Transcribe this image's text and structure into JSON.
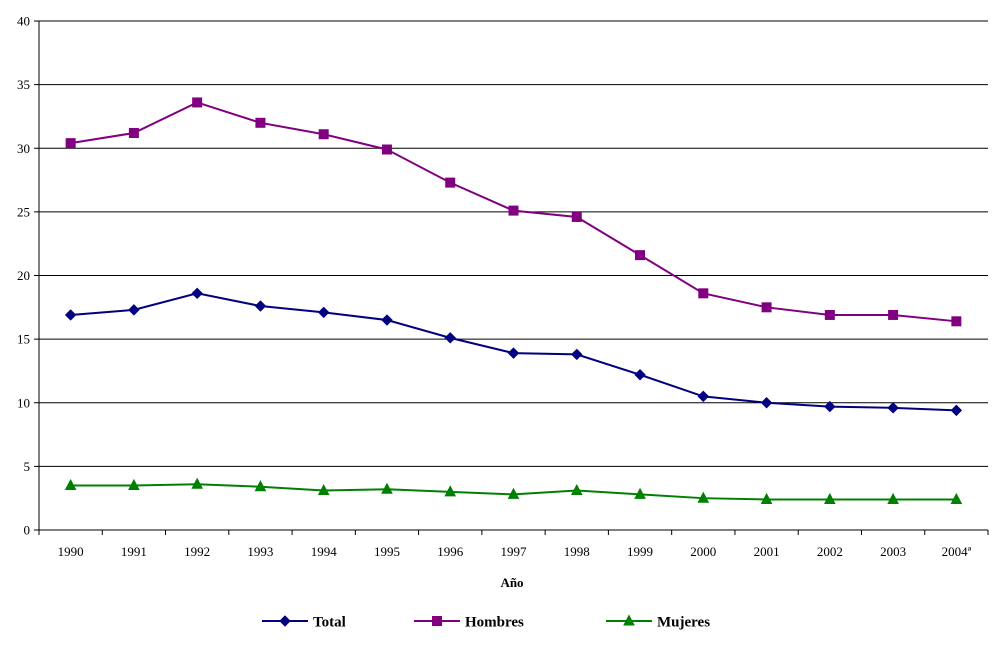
{
  "chart_data": {
    "type": "line",
    "title": "",
    "xlabel": "Año",
    "ylabel": "",
    "ylim": [
      0,
      40
    ],
    "yticks": [
      0,
      5,
      10,
      15,
      20,
      25,
      30,
      35,
      40
    ],
    "grid": "horizontal",
    "legend_position": "bottom",
    "categories": [
      "1990",
      "1991",
      "1992",
      "1993",
      "1994",
      "1995",
      "1996",
      "1997",
      "1998",
      "1999",
      "2000",
      "2001",
      "2002",
      "2003",
      "2004ª"
    ],
    "series": [
      {
        "name": "Total",
        "color": "#000080",
        "marker": "diamond",
        "values": [
          16.9,
          17.3,
          18.6,
          17.6,
          17.1,
          16.5,
          15.1,
          13.9,
          13.8,
          12.2,
          10.5,
          10.0,
          9.7,
          9.6,
          9.4
        ]
      },
      {
        "name": "Hombres",
        "color": "#800080",
        "marker": "square",
        "values": [
          30.4,
          31.2,
          33.6,
          32.0,
          31.1,
          29.9,
          27.3,
          25.1,
          24.6,
          21.6,
          18.6,
          17.5,
          16.9,
          16.9,
          16.4
        ]
      },
      {
        "name": "Mujeres",
        "color": "#008000",
        "marker": "triangle",
        "values": [
          3.5,
          3.5,
          3.6,
          3.4,
          3.1,
          3.2,
          3.0,
          2.8,
          3.1,
          2.8,
          2.5,
          2.4,
          2.4,
          2.4,
          2.4
        ]
      }
    ]
  }
}
